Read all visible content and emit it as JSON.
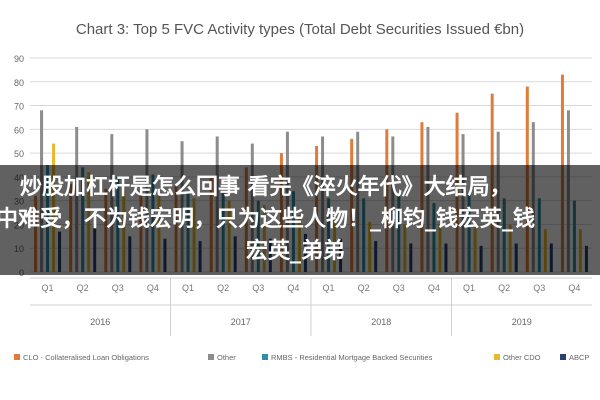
{
  "chart_data": {
    "type": "bar",
    "title": "Chart 3: Top 5 FVC Activity types (Total Debt Securities Issued €bn)",
    "ylim": [
      0,
      90
    ],
    "yticks": [
      0,
      10,
      20,
      30,
      40,
      50,
      60,
      70,
      80,
      90
    ],
    "grid": true,
    "legend": "bottom",
    "categories": [
      "Q1",
      "Q2",
      "Q3",
      "Q4",
      "Q1",
      "Q2",
      "Q3",
      "Q4",
      "Q1",
      "Q2",
      "Q3",
      "Q4",
      "Q1",
      "Q2",
      "Q3",
      "Q4"
    ],
    "groups": [
      {
        "label": "2016",
        "count": 4
      },
      {
        "label": "2017",
        "count": 4
      },
      {
        "label": "2018",
        "count": 4
      },
      {
        "label": "2019",
        "count": 4
      }
    ],
    "series": [
      {
        "name": "CLO - Collateralised Loan Obligations",
        "color": "#e07b39",
        "values": [
          32,
          37,
          35,
          34,
          36,
          40,
          44,
          50,
          53,
          56,
          60,
          63,
          67,
          75,
          78,
          83
        ]
      },
      {
        "name": "Other",
        "color": "#8c8c8c",
        "values": [
          68,
          61,
          58,
          60,
          55,
          57,
          54,
          59,
          57,
          59,
          57,
          61,
          58,
          59,
          63,
          68
        ]
      },
      {
        "name": "RMBS - Residential Mortgage Backed Securities",
        "color": "#2f8fa8",
        "values": [
          45,
          44,
          40,
          41,
          34,
          34,
          30,
          34,
          31,
          31,
          33,
          29,
          33,
          31,
          31,
          30
        ]
      },
      {
        "name": "Other CDO",
        "color": "#e8b82e",
        "values": [
          54,
          42,
          35,
          32,
          31,
          30,
          28,
          24,
          22,
          21,
          20,
          20,
          19,
          20,
          18,
          18
        ]
      },
      {
        "name": "ABCP",
        "color": "#2a3f75",
        "values": [
          17,
          19,
          15,
          14,
          13,
          15,
          14,
          16,
          14,
          13,
          12,
          12,
          11,
          12,
          12,
          11
        ]
      }
    ]
  },
  "overlay": {
    "line1": "炒股加杠杆是怎么回事 看完《淬火年代》大结局，",
    "line2": "中难受，不为钱宏明，只为这些人物！_柳钧_钱宏英_钱",
    "line3": "宏英_弟弟"
  }
}
